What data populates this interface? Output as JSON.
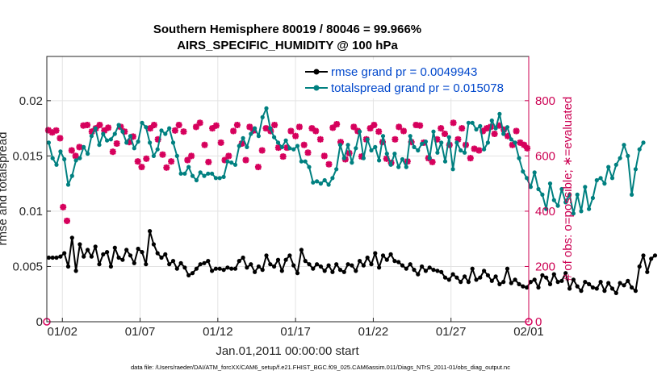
{
  "chart_data": {
    "type": "line",
    "title_line1": "Southern Hemisphere 80019 / 80046 = 99.966%",
    "title_line2": "AIRS_SPECIFIC_HUMIDITY @ 100 hPa",
    "xlabel": "Jan.01,2011 00:00:00 start",
    "ylabel_left": "rmse and totalspread",
    "ylabel_right": "# of obs: o=possible; ∗=evaluated",
    "footer": "data file: /Users/raeder/DAI/ATM_forcXX/CAM6_setup/f.e21.FHIST_BGC.f09_025.CAM6assim.011/Diags_NTrS_2011-01/obs_diag_output.nc",
    "x_tick_labels": [
      "01/02",
      "01/07",
      "01/12",
      "01/17",
      "01/22",
      "01/27",
      "02/01"
    ],
    "x_tick_days": [
      2,
      7,
      12,
      17,
      22,
      27,
      32
    ],
    "xlim_days": [
      1,
      32
    ],
    "y_left_ticks": [
      "0",
      "0.005",
      "0.01",
      "0.015",
      "0.02"
    ],
    "y_left_tick_values": [
      0,
      0.005,
      0.01,
      0.015,
      0.02
    ],
    "ylim_left": [
      0,
      0.024
    ],
    "y_right_ticks": [
      "0",
      "200",
      "400",
      "600",
      "800"
    ],
    "y_right_tick_values": [
      0,
      200,
      400,
      600,
      800
    ],
    "ylim_right": [
      0,
      960
    ],
    "grid": true,
    "legend_location": "top-right",
    "colors": {
      "rmse": "#000000",
      "spread": "#008080",
      "obs": "#d6005c",
      "legend_text": "#0047cc",
      "right_axis": "#cc0052"
    },
    "series": [
      {
        "name": "rmse grand pr = 0.0049943",
        "axis": "left",
        "marker": "dot",
        "x_start_day": 1.125,
        "x_step_days": 0.25,
        "values": [
          0.0058,
          0.0058,
          0.0058,
          0.0059,
          0.0062,
          0.005,
          0.0076,
          0.0046,
          0.007,
          0.0059,
          0.0065,
          0.0059,
          0.0068,
          0.0052,
          0.0061,
          0.0063,
          0.005,
          0.0067,
          0.0058,
          0.0056,
          0.0065,
          0.006,
          0.0053,
          0.0066,
          0.0063,
          0.0052,
          0.0082,
          0.007,
          0.0062,
          0.0058,
          0.0061,
          0.0052,
          0.0055,
          0.0048,
          0.0053,
          0.0049,
          0.0042,
          0.0044,
          0.0048,
          0.0052,
          0.0053,
          0.0055,
          0.0046,
          0.0048,
          0.0048,
          0.0047,
          0.0049,
          0.0048,
          0.0048,
          0.0055,
          0.0058,
          0.0049,
          0.0052,
          0.0045,
          0.005,
          0.0047,
          0.006,
          0.0052,
          0.005,
          0.0056,
          0.0046,
          0.0056,
          0.006,
          0.0051,
          0.0044,
          0.0065,
          0.0055,
          0.0052,
          0.0048,
          0.0052,
          0.005,
          0.0046,
          0.0051,
          0.0045,
          0.0052,
          0.0047,
          0.0045,
          0.0052,
          0.0051,
          0.0046,
          0.0055,
          0.0051,
          0.0058,
          0.0052,
          0.0062,
          0.0049,
          0.006,
          0.0056,
          0.0061,
          0.0055,
          0.0054,
          0.0051,
          0.0048,
          0.0052,
          0.0047,
          0.0043,
          0.005,
          0.0046,
          0.0049,
          0.0047,
          0.0046,
          0.0045,
          0.004,
          0.0038,
          0.0043,
          0.004,
          0.0036,
          0.0041,
          0.0036,
          0.0048,
          0.0038,
          0.004,
          0.0046,
          0.0042,
          0.0037,
          0.0041,
          0.0034,
          0.0036,
          0.0048,
          0.0035,
          0.0038,
          0.0034,
          0.0032,
          0.0031,
          0.0036,
          0.0038,
          0.0031,
          0.0042,
          0.004,
          0.0034,
          0.0043,
          0.0036,
          0.0037,
          0.0044,
          0.003,
          0.0038,
          0.0032,
          0.0028,
          0.0036,
          0.0034,
          0.0031,
          0.003,
          0.0036,
          0.0028,
          0.0035,
          0.003,
          0.0026,
          0.0035,
          0.0033,
          0.0037,
          0.0031,
          0.0028,
          0.005,
          0.006,
          0.0045,
          0.0057,
          0.006
        ]
      },
      {
        "name": "totalspread grand pr = 0.015078",
        "axis": "left",
        "marker": "dot",
        "x_start_day": 1.125,
        "x_step_days": 0.25,
        "values": [
          0.0162,
          0.0148,
          0.0142,
          0.0154,
          0.0147,
          0.0124,
          0.0132,
          0.0146,
          0.0148,
          0.0158,
          0.0152,
          0.0168,
          0.0175,
          0.016,
          0.017,
          0.0164,
          0.0165,
          0.017,
          0.0178,
          0.0172,
          0.0162,
          0.0168,
          0.0157,
          0.0163,
          0.018,
          0.0176,
          0.0162,
          0.015,
          0.0156,
          0.0173,
          0.017,
          0.0175,
          0.0162,
          0.015,
          0.0134,
          0.0134,
          0.014,
          0.0132,
          0.0128,
          0.0135,
          0.0132,
          0.0134,
          0.0134,
          0.013,
          0.013,
          0.0131,
          0.0145,
          0.0144,
          0.0142,
          0.0159,
          0.0166,
          0.0158,
          0.017,
          0.0175,
          0.0168,
          0.0185,
          0.0193,
          0.0175,
          0.0167,
          0.0162,
          0.0158,
          0.0164,
          0.0157,
          0.0156,
          0.0159,
          0.0145,
          0.0145,
          0.014,
          0.0126,
          0.0127,
          0.0125,
          0.0128,
          0.0124,
          0.013,
          0.0138,
          0.016,
          0.0148,
          0.016,
          0.0144,
          0.0157,
          0.0172,
          0.0148,
          0.0165,
          0.0155,
          0.0158,
          0.0146,
          0.0168,
          0.0152,
          0.0142,
          0.0152,
          0.014,
          0.0147,
          0.014,
          0.0168,
          0.0158,
          0.0155,
          0.0161,
          0.0163,
          0.0148,
          0.0172,
          0.0153,
          0.0162,
          0.0145,
          0.0167,
          0.0138,
          0.0162,
          0.0155,
          0.0153,
          0.018,
          0.018,
          0.0174,
          0.0177,
          0.0156,
          0.0162,
          0.0182,
          0.0175,
          0.0188,
          0.017,
          0.0176,
          0.0165,
          0.0162,
          0.0148,
          0.0136,
          0.013,
          0.0122,
          0.0135,
          0.012,
          0.0115,
          0.0102,
          0.0125,
          0.011,
          0.0105,
          0.012,
          0.0108,
          0.0115,
          0.0098,
          0.0115,
          0.01,
          0.0122,
          0.0102,
          0.0112,
          0.0128,
          0.013,
          0.0125,
          0.014,
          0.013,
          0.0142,
          0.0148,
          0.016,
          0.015,
          0.0115,
          0.0138,
          0.0156,
          0.0162
        ]
      },
      {
        "name": "obs possible",
        "axis": "right",
        "marker": "circle",
        "points": [
          [
            1,
            0
          ],
          [
            32,
            0
          ]
        ]
      },
      {
        "name": "obs evaluated",
        "axis": "right",
        "marker": "star",
        "points": [
          [
            1.1,
            693
          ],
          [
            1.35,
            685
          ],
          [
            1.6,
            692
          ],
          [
            1.85,
            664
          ],
          [
            2.05,
            415
          ],
          [
            2.3,
            365
          ],
          [
            2.6,
            620
          ],
          [
            2.85,
            600
          ],
          [
            3.1,
            632
          ],
          [
            3.35,
            710
          ],
          [
            3.6,
            712
          ],
          [
            3.9,
            688
          ],
          [
            4.15,
            700
          ],
          [
            4.4,
            712
          ],
          [
            4.7,
            692
          ],
          [
            4.95,
            702
          ],
          [
            5.25,
            615
          ],
          [
            5.5,
            645
          ],
          [
            5.75,
            705
          ],
          [
            6.0,
            688
          ],
          [
            6.3,
            650
          ],
          [
            6.55,
            670
          ],
          [
            6.85,
            580
          ],
          [
            7.1,
            560
          ],
          [
            7.4,
            590
          ],
          [
            7.65,
            700
          ],
          [
            7.9,
            712
          ],
          [
            8.15,
            660
          ],
          [
            8.45,
            605
          ],
          [
            8.7,
            558
          ],
          [
            9.0,
            580
          ],
          [
            9.25,
            692
          ],
          [
            9.5,
            712
          ],
          [
            9.8,
            688
          ],
          [
            10.05,
            585
          ],
          [
            10.3,
            600
          ],
          [
            10.6,
            705
          ],
          [
            10.85,
            720
          ],
          [
            11.15,
            640
          ],
          [
            11.4,
            578
          ],
          [
            11.65,
            700
          ],
          [
            11.9,
            710
          ],
          [
            12.2,
            648
          ],
          [
            12.45,
            585
          ],
          [
            12.7,
            600
          ],
          [
            13.0,
            690
          ],
          [
            13.25,
            712
          ],
          [
            13.55,
            645
          ],
          [
            13.8,
            585
          ],
          [
            14.05,
            705
          ],
          [
            14.3,
            692
          ],
          [
            14.6,
            560
          ],
          [
            14.85,
            620
          ],
          [
            15.1,
            700
          ],
          [
            15.4,
            690
          ],
          [
            15.65,
            712
          ],
          [
            15.9,
            630
          ],
          [
            16.2,
            598
          ],
          [
            16.45,
            630
          ],
          [
            16.7,
            690
          ],
          [
            17.0,
            672
          ],
          [
            17.25,
            705
          ],
          [
            17.55,
            640
          ],
          [
            17.8,
            612
          ],
          [
            18.05,
            700
          ],
          [
            18.3,
            690
          ],
          [
            18.6,
            660
          ],
          [
            18.85,
            600
          ],
          [
            19.15,
            570
          ],
          [
            19.4,
            702
          ],
          [
            19.65,
            715
          ],
          [
            19.9,
            650
          ],
          [
            20.2,
            588
          ],
          [
            20.45,
            610
          ],
          [
            20.75,
            705
          ],
          [
            21.0,
            690
          ],
          [
            21.25,
            598
          ],
          [
            21.55,
            660
          ],
          [
            21.8,
            700
          ],
          [
            22.05,
            712
          ],
          [
            22.35,
            688
          ],
          [
            22.6,
            650
          ],
          [
            22.85,
            590
          ],
          [
            23.15,
            575
          ],
          [
            23.4,
            660
          ],
          [
            23.65,
            705
          ],
          [
            23.95,
            690
          ],
          [
            24.2,
            580
          ],
          [
            24.45,
            650
          ],
          [
            24.75,
            712
          ],
          [
            25.0,
            710
          ],
          [
            25.25,
            648
          ],
          [
            25.55,
            592
          ],
          [
            25.8,
            578
          ],
          [
            26.1,
            660
          ],
          [
            26.35,
            700
          ],
          [
            26.6,
            680
          ],
          [
            26.9,
            640
          ],
          [
            27.15,
            720
          ],
          [
            27.45,
            660
          ],
          [
            27.7,
            700
          ],
          [
            27.95,
            640
          ],
          [
            28.25,
            592
          ],
          [
            28.5,
            626
          ],
          [
            28.8,
            620
          ],
          [
            29.05,
            690
          ],
          [
            29.3,
            700
          ],
          [
            29.55,
            705
          ],
          [
            29.8,
            680
          ],
          [
            30.1,
            710
          ],
          [
            30.4,
            695
          ],
          [
            30.65,
            672
          ],
          [
            30.95,
            640
          ],
          [
            31.2,
            690
          ],
          [
            31.45,
            648
          ],
          [
            31.7,
            640
          ],
          [
            31.9,
            628
          ]
        ]
      }
    ]
  }
}
